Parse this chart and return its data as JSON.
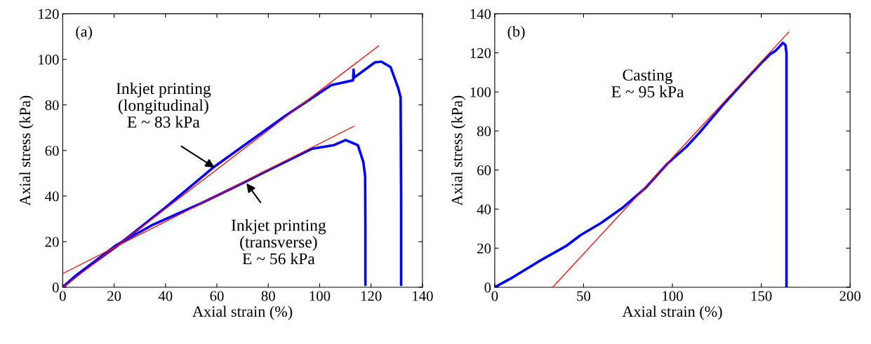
{
  "chart_data": [
    {
      "type": "line",
      "xlabel": "Axial strain (%)",
      "ylabel": "Axial stress (kPa)",
      "xlim": [
        0,
        140
      ],
      "ylim": [
        0,
        120
      ],
      "xticks": [
        0,
        20,
        40,
        60,
        80,
        100,
        120,
        140
      ],
      "yticks": [
        0,
        20,
        40,
        60,
        80,
        100,
        120
      ],
      "grid": false,
      "legend": false,
      "marker": "none",
      "line_style": "solid",
      "annotations": [
        "(a)",
        {
          "text": "Inkjet printing\n(longitudinal)\nE ~ 83 kPa",
          "x": 59.4,
          "y": 52.3
        },
        {
          "text": "Inkjet printing\n(transverse)\nE ~ 56 kPa",
          "x": 71.3,
          "y": 46
        }
      ],
      "series": [
        {
          "color": "#0000ff",
          "x": [
            0.5,
            6.7,
            20.9,
            40,
            58.9,
            86.4,
            104.5,
            113,
            113.2,
            113.4,
            121.5,
            124,
            127.6,
            130.5,
            131.5,
            131.7,
            131.7
          ],
          "values": [
            0.5,
            6.3,
            17.9,
            35,
            52.8,
            75,
            88.7,
            90.8,
            95.5,
            92,
            98.7,
            99,
            96.6,
            87.6,
            83.4,
            40,
            1
          ]
        },
        {
          "color": "#0000ff",
          "x": [
            0.5,
            5,
            20.9,
            35.2,
            54.2,
            71.3,
            78.8,
            96.8,
            105.4,
            110.1,
            114.9,
            117,
            117.7,
            117.8,
            117.8
          ],
          "values": [
            0.5,
            5,
            18.5,
            27.5,
            37,
            46.4,
            50.7,
            60.7,
            62.3,
            64.6,
            62.3,
            54.9,
            48.7,
            25,
            1
          ]
        },
        {
          "color": "#ff0000",
          "x": [
            0,
            123
          ],
          "values": [
            0,
            106
          ]
        },
        {
          "color": "#ff0000",
          "x": [
            0,
            113.4
          ],
          "values": [
            6,
            70.7
          ]
        }
      ]
    },
    {
      "type": "line",
      "xlabel": "Axial strain (%)",
      "ylabel": "Axial stress (kPa)",
      "xlim": [
        0,
        200
      ],
      "ylim": [
        0,
        140
      ],
      "xticks": [
        0,
        50,
        100,
        150,
        200
      ],
      "yticks": [
        0,
        20,
        40,
        60,
        80,
        100,
        120,
        140
      ],
      "grid": false,
      "legend": false,
      "marker": "none",
      "line_style": "solid",
      "annotations": [
        "(b)",
        "Casting\nE ~ 95 kPa"
      ],
      "series": [
        {
          "color": "#0000ff",
          "x": [
            0,
            2,
            10,
            24.7,
            40,
            48.4,
            60,
            72,
            85,
            97.1,
            108,
            115.5,
            128.7,
            140,
            149.7,
            155,
            158,
            162.2,
            163.6,
            164.2,
            164.2
          ],
          "values": [
            0,
            1,
            5,
            13.2,
            21,
            26.7,
            33,
            40.7,
            51,
            63.2,
            72,
            79.4,
            93.6,
            105,
            114.5,
            119.3,
            121,
            125.1,
            124,
            120,
            0
          ]
        },
        {
          "color": "#ff0000",
          "x": [
            32.6,
            165.5
          ],
          "values": [
            0,
            130.7
          ]
        }
      ]
    }
  ]
}
